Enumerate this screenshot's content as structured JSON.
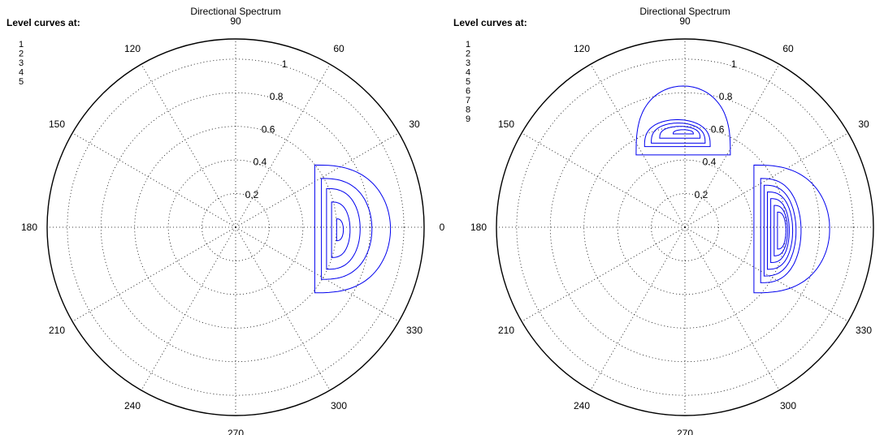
{
  "chart_data": [
    {
      "type": "polar-contour",
      "title": "Directional Spectrum",
      "legend_title": "Level curves at:",
      "legend_placement": "top-left",
      "level_labels": [
        "1",
        "2",
        "3",
        "4",
        "5"
      ],
      "radial_ticks": [
        0.2,
        0.4,
        0.6,
        0.8,
        1
      ],
      "radial_tick_labels": [
        "0.2",
        "0.4",
        "0.6",
        "0.8",
        "1"
      ],
      "radial_max": 1.12,
      "angle_ticks_deg": [
        0,
        30,
        60,
        90,
        120,
        150,
        180,
        210,
        240,
        270,
        300,
        330
      ],
      "angle_tick_labels": [
        "0",
        "30",
        "60",
        "90",
        "120",
        "150",
        "180",
        "210",
        "240",
        "270",
        "300",
        "330"
      ],
      "grid": "dotted",
      "line_color": "#0000ee",
      "peaks": [
        {
          "x": 0.62,
          "y": -0.02,
          "contours": [
            {
              "xmin": 0.47,
              "xmax": 0.92,
              "ytop": 0.37,
              "ybot": -0.39
            },
            {
              "xmin": 0.51,
              "xmax": 0.81,
              "ytop": 0.29,
              "ybot": -0.31
            },
            {
              "xmin": 0.54,
              "xmax": 0.74,
              "ytop": 0.23,
              "ybot": -0.25
            },
            {
              "xmin": 0.57,
              "xmax": 0.68,
              "ytop": 0.15,
              "ybot": -0.18
            },
            {
              "xmin": 0.6,
              "xmax": 0.64,
              "ytop": 0.05,
              "ybot": -0.08
            }
          ]
        }
      ]
    },
    {
      "type": "polar-contour",
      "title": "Directional Spectrum",
      "legend_title": "Level curves at:",
      "legend_placement": "top-left",
      "level_labels": [
        "1",
        "2",
        "3",
        "4",
        "5",
        "6",
        "7",
        "8",
        "9"
      ],
      "radial_ticks": [
        0.2,
        0.4,
        0.6,
        0.8,
        1
      ],
      "radial_tick_labels": [
        "0.2",
        "0.4",
        "0.6",
        "0.8",
        "1"
      ],
      "radial_max": 1.12,
      "angle_ticks_deg": [
        0,
        30,
        60,
        90,
        120,
        150,
        180,
        210,
        240,
        270,
        300,
        330
      ],
      "angle_tick_labels": [
        "0",
        "30",
        "60",
        "90",
        "120",
        "150",
        "180",
        "210",
        "240",
        "270",
        "300",
        "330"
      ],
      "grid": "dotted",
      "line_color": "#0000ee",
      "peaks": [
        {
          "x": 0.59,
          "y": -0.02,
          "contours": [
            {
              "xmin": 0.41,
              "xmax": 0.86,
              "ytop": 0.37,
              "ybot": -0.39
            },
            {
              "xmin": 0.45,
              "xmax": 0.69,
              "ytop": 0.29,
              "ybot": -0.33
            },
            {
              "xmin": 0.47,
              "xmax": 0.66,
              "ytop": 0.25,
              "ybot": -0.29
            },
            {
              "xmin": 0.49,
              "xmax": 0.64,
              "ytop": 0.21,
              "ybot": -0.25
            },
            {
              "xmin": 0.51,
              "xmax": 0.62,
              "ytop": 0.17,
              "ybot": -0.21
            },
            {
              "xmin": 0.53,
              "xmax": 0.61,
              "ytop": 0.13,
              "ybot": -0.17
            },
            {
              "xmin": 0.55,
              "xmax": 0.6,
              "ytop": 0.09,
              "ybot": -0.13
            }
          ]
        },
        {
          "x": 0.0,
          "y": 0.57,
          "contours": [
            {
              "xmin": -0.29,
              "xmax": 0.27,
              "ybot": 0.43,
              "ytop": 0.84
            },
            {
              "xmin": -0.24,
              "xmax": 0.15,
              "ybot": 0.48,
              "ytop": 0.64
            },
            {
              "xmin": -0.2,
              "xmax": 0.12,
              "ybot": 0.5,
              "ytop": 0.62
            },
            {
              "xmin": -0.15,
              "xmax": 0.09,
              "ybot": 0.53,
              "ytop": 0.6
            },
            {
              "xmin": -0.07,
              "xmax": 0.05,
              "ybot": 0.555,
              "ytop": 0.58
            }
          ]
        }
      ]
    }
  ]
}
